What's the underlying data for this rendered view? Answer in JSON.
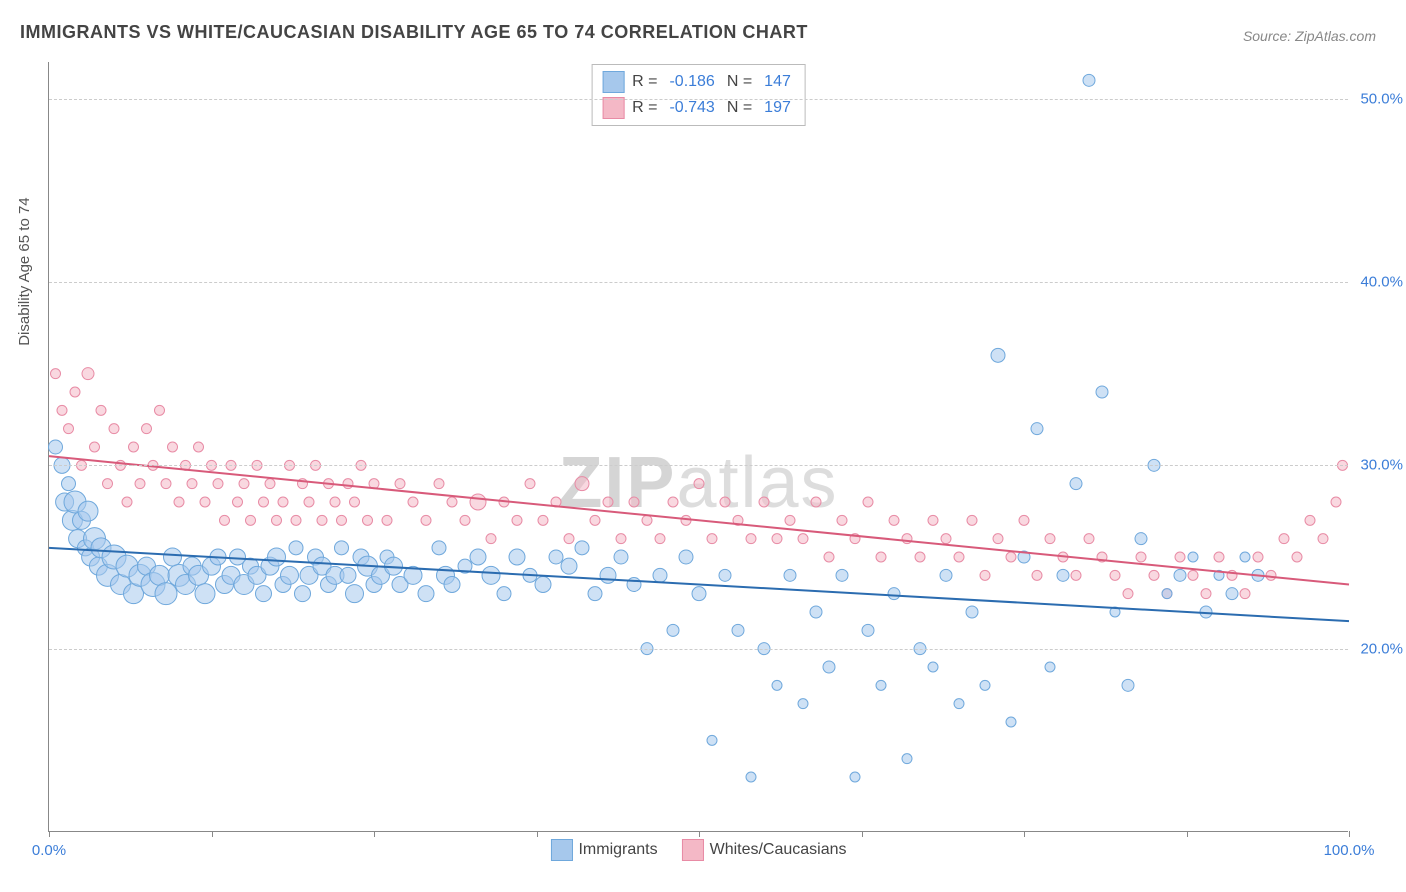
{
  "title": "IMMIGRANTS VS WHITE/CAUCASIAN DISABILITY AGE 65 TO 74 CORRELATION CHART",
  "source": "Source: ZipAtlas.com",
  "yaxis_title": "Disability Age 65 to 74",
  "watermark_bold": "ZIP",
  "watermark_rest": "atlas",
  "chart": {
    "type": "scatter",
    "xlim": [
      0,
      100
    ],
    "ylim": [
      10,
      52
    ],
    "yticks": [
      20,
      30,
      40,
      50
    ],
    "ytick_labels": [
      "20.0%",
      "30.0%",
      "40.0%",
      "50.0%"
    ],
    "xticks": [
      0,
      12.5,
      25,
      37.5,
      50,
      62.5,
      75,
      87.5,
      100
    ],
    "xtick_labels": {
      "0": "0.0%",
      "100": "100.0%"
    },
    "grid_color": "#cccccc",
    "background_color": "#ffffff",
    "series": [
      {
        "name": "Immigrants",
        "fill": "#a6c8ec",
        "stroke": "#6fa8dc",
        "fill_opacity": 0.55,
        "line_color": "#2b6cb0",
        "line_width": 2,
        "trend": {
          "x1": 0,
          "y1": 25.5,
          "x2": 100,
          "y2": 21.5
        },
        "R_label": "R =",
        "R": "-0.186",
        "N_label": "N =",
        "N": "147",
        "points": [
          [
            0.5,
            31,
            14
          ],
          [
            1,
            30,
            16
          ],
          [
            1.2,
            28,
            18
          ],
          [
            1.5,
            29,
            14
          ],
          [
            1.8,
            27,
            20
          ],
          [
            2,
            28,
            22
          ],
          [
            2.2,
            26,
            18
          ],
          [
            2.5,
            27,
            18
          ],
          [
            2.8,
            25.5,
            16
          ],
          [
            3,
            27.5,
            20
          ],
          [
            3.2,
            25,
            18
          ],
          [
            3.5,
            26,
            22
          ],
          [
            3.8,
            24.5,
            18
          ],
          [
            4,
            25.5,
            20
          ],
          [
            4.5,
            24,
            22
          ],
          [
            5,
            25,
            24
          ],
          [
            5.5,
            23.5,
            20
          ],
          [
            6,
            24.5,
            22
          ],
          [
            6.5,
            23,
            20
          ],
          [
            7,
            24,
            22
          ],
          [
            7.5,
            24.5,
            18
          ],
          [
            8,
            23.5,
            24
          ],
          [
            8.5,
            24,
            20
          ],
          [
            9,
            23,
            22
          ],
          [
            9.5,
            25,
            18
          ],
          [
            10,
            24,
            22
          ],
          [
            10.5,
            23.5,
            20
          ],
          [
            11,
            24.5,
            18
          ],
          [
            11.5,
            24,
            20
          ],
          [
            12,
            23,
            20
          ],
          [
            12.5,
            24.5,
            18
          ],
          [
            13,
            25,
            16
          ],
          [
            13.5,
            23.5,
            18
          ],
          [
            14,
            24,
            18
          ],
          [
            14.5,
            25,
            16
          ],
          [
            15,
            23.5,
            20
          ],
          [
            15.5,
            24.5,
            16
          ],
          [
            16,
            24,
            18
          ],
          [
            16.5,
            23,
            16
          ],
          [
            17,
            24.5,
            18
          ],
          [
            17.5,
            25,
            18
          ],
          [
            18,
            23.5,
            16
          ],
          [
            18.5,
            24,
            18
          ],
          [
            19,
            25.5,
            14
          ],
          [
            19.5,
            23,
            16
          ],
          [
            20,
            24,
            18
          ],
          [
            20.5,
            25,
            16
          ],
          [
            21,
            24.5,
            18
          ],
          [
            21.5,
            23.5,
            16
          ],
          [
            22,
            24,
            18
          ],
          [
            22.5,
            25.5,
            14
          ],
          [
            23,
            24,
            16
          ],
          [
            23.5,
            23,
            18
          ],
          [
            24,
            25,
            16
          ],
          [
            24.5,
            24.5,
            20
          ],
          [
            25,
            23.5,
            16
          ],
          [
            25.5,
            24,
            18
          ],
          [
            26,
            25,
            14
          ],
          [
            26.5,
            24.5,
            18
          ],
          [
            27,
            23.5,
            16
          ],
          [
            28,
            24,
            18
          ],
          [
            29,
            23,
            16
          ],
          [
            30,
            25.5,
            14
          ],
          [
            30.5,
            24,
            18
          ],
          [
            31,
            23.5,
            16
          ],
          [
            32,
            24.5,
            14
          ],
          [
            33,
            25,
            16
          ],
          [
            34,
            24,
            18
          ],
          [
            35,
            23,
            14
          ],
          [
            36,
            25,
            16
          ],
          [
            37,
            24,
            14
          ],
          [
            38,
            23.5,
            16
          ],
          [
            39,
            25,
            14
          ],
          [
            40,
            24.5,
            16
          ],
          [
            41,
            25.5,
            14
          ],
          [
            42,
            23,
            14
          ],
          [
            43,
            24,
            16
          ],
          [
            44,
            25,
            14
          ],
          [
            45,
            23.5,
            14
          ],
          [
            46,
            20,
            12
          ],
          [
            47,
            24,
            14
          ],
          [
            48,
            21,
            12
          ],
          [
            49,
            25,
            14
          ],
          [
            50,
            23,
            14
          ],
          [
            51,
            15,
            10
          ],
          [
            52,
            24,
            12
          ],
          [
            53,
            21,
            12
          ],
          [
            54,
            13,
            10
          ],
          [
            55,
            20,
            12
          ],
          [
            56,
            18,
            10
          ],
          [
            57,
            24,
            12
          ],
          [
            58,
            17,
            10
          ],
          [
            59,
            22,
            12
          ],
          [
            60,
            19,
            12
          ],
          [
            61,
            24,
            12
          ],
          [
            62,
            13,
            10
          ],
          [
            63,
            21,
            12
          ],
          [
            64,
            18,
            10
          ],
          [
            65,
            23,
            12
          ],
          [
            66,
            14,
            10
          ],
          [
            67,
            20,
            12
          ],
          [
            68,
            19,
            10
          ],
          [
            69,
            24,
            12
          ],
          [
            70,
            17,
            10
          ],
          [
            71,
            22,
            12
          ],
          [
            72,
            18,
            10
          ],
          [
            73,
            36,
            14
          ],
          [
            74,
            16,
            10
          ],
          [
            75,
            25,
            12
          ],
          [
            76,
            32,
            12
          ],
          [
            77,
            19,
            10
          ],
          [
            78,
            24,
            12
          ],
          [
            79,
            29,
            12
          ],
          [
            80,
            51,
            12
          ],
          [
            81,
            34,
            12
          ],
          [
            82,
            22,
            10
          ],
          [
            83,
            18,
            12
          ],
          [
            84,
            26,
            12
          ],
          [
            85,
            30,
            12
          ],
          [
            86,
            23,
            10
          ],
          [
            87,
            24,
            12
          ],
          [
            88,
            25,
            10
          ],
          [
            89,
            22,
            12
          ],
          [
            90,
            24,
            10
          ],
          [
            91,
            23,
            12
          ],
          [
            92,
            25,
            10
          ],
          [
            93,
            24,
            12
          ]
        ]
      },
      {
        "name": "Whites/Caucasians",
        "fill": "#f4b8c6",
        "stroke": "#e88ba5",
        "fill_opacity": 0.55,
        "line_color": "#d85a7a",
        "line_width": 2,
        "trend": {
          "x1": 0,
          "y1": 30.5,
          "x2": 100,
          "y2": 23.5
        },
        "R_label": "R =",
        "R": "-0.743",
        "N_label": "N =",
        "N": "197",
        "points": [
          [
            0.5,
            35,
            10
          ],
          [
            1,
            33,
            10
          ],
          [
            1.5,
            32,
            10
          ],
          [
            2,
            34,
            10
          ],
          [
            2.5,
            30,
            10
          ],
          [
            3,
            35,
            12
          ],
          [
            3.5,
            31,
            10
          ],
          [
            4,
            33,
            10
          ],
          [
            4.5,
            29,
            10
          ],
          [
            5,
            32,
            10
          ],
          [
            5.5,
            30,
            10
          ],
          [
            6,
            28,
            10
          ],
          [
            6.5,
            31,
            10
          ],
          [
            7,
            29,
            10
          ],
          [
            7.5,
            32,
            10
          ],
          [
            8,
            30,
            10
          ],
          [
            8.5,
            33,
            10
          ],
          [
            9,
            29,
            10
          ],
          [
            9.5,
            31,
            10
          ],
          [
            10,
            28,
            10
          ],
          [
            10.5,
            30,
            10
          ],
          [
            11,
            29,
            10
          ],
          [
            11.5,
            31,
            10
          ],
          [
            12,
            28,
            10
          ],
          [
            12.5,
            30,
            10
          ],
          [
            13,
            29,
            10
          ],
          [
            13.5,
            27,
            10
          ],
          [
            14,
            30,
            10
          ],
          [
            14.5,
            28,
            10
          ],
          [
            15,
            29,
            10
          ],
          [
            15.5,
            27,
            10
          ],
          [
            16,
            30,
            10
          ],
          [
            16.5,
            28,
            10
          ],
          [
            17,
            29,
            10
          ],
          [
            17.5,
            27,
            10
          ],
          [
            18,
            28,
            10
          ],
          [
            18.5,
            30,
            10
          ],
          [
            19,
            27,
            10
          ],
          [
            19.5,
            29,
            10
          ],
          [
            20,
            28,
            10
          ],
          [
            20.5,
            30,
            10
          ],
          [
            21,
            27,
            10
          ],
          [
            21.5,
            29,
            10
          ],
          [
            22,
            28,
            10
          ],
          [
            22.5,
            27,
            10
          ],
          [
            23,
            29,
            10
          ],
          [
            23.5,
            28,
            10
          ],
          [
            24,
            30,
            10
          ],
          [
            24.5,
            27,
            10
          ],
          [
            25,
            29,
            10
          ],
          [
            26,
            27,
            10
          ],
          [
            27,
            29,
            10
          ],
          [
            28,
            28,
            10
          ],
          [
            29,
            27,
            10
          ],
          [
            30,
            29,
            10
          ],
          [
            31,
            28,
            10
          ],
          [
            32,
            27,
            10
          ],
          [
            33,
            28,
            16
          ],
          [
            34,
            26,
            10
          ],
          [
            35,
            28,
            10
          ],
          [
            36,
            27,
            10
          ],
          [
            37,
            29,
            10
          ],
          [
            38,
            27,
            10
          ],
          [
            39,
            28,
            10
          ],
          [
            40,
            26,
            10
          ],
          [
            41,
            29,
            14
          ],
          [
            42,
            27,
            10
          ],
          [
            43,
            28,
            10
          ],
          [
            44,
            26,
            10
          ],
          [
            45,
            28,
            10
          ],
          [
            46,
            27,
            10
          ],
          [
            47,
            26,
            10
          ],
          [
            48,
            28,
            10
          ],
          [
            49,
            27,
            10
          ],
          [
            50,
            29,
            10
          ],
          [
            51,
            26,
            10
          ],
          [
            52,
            28,
            10
          ],
          [
            53,
            27,
            10
          ],
          [
            54,
            26,
            10
          ],
          [
            55,
            28,
            10
          ],
          [
            56,
            26,
            10
          ],
          [
            57,
            27,
            10
          ],
          [
            58,
            26,
            10
          ],
          [
            59,
            28,
            10
          ],
          [
            60,
            25,
            10
          ],
          [
            61,
            27,
            10
          ],
          [
            62,
            26,
            10
          ],
          [
            63,
            28,
            10
          ],
          [
            64,
            25,
            10
          ],
          [
            65,
            27,
            10
          ],
          [
            66,
            26,
            10
          ],
          [
            67,
            25,
            10
          ],
          [
            68,
            27,
            10
          ],
          [
            69,
            26,
            10
          ],
          [
            70,
            25,
            10
          ],
          [
            71,
            27,
            10
          ],
          [
            72,
            24,
            10
          ],
          [
            73,
            26,
            10
          ],
          [
            74,
            25,
            10
          ],
          [
            75,
            27,
            10
          ],
          [
            76,
            24,
            10
          ],
          [
            77,
            26,
            10
          ],
          [
            78,
            25,
            10
          ],
          [
            79,
            24,
            10
          ],
          [
            80,
            26,
            10
          ],
          [
            81,
            25,
            10
          ],
          [
            82,
            24,
            10
          ],
          [
            83,
            23,
            10
          ],
          [
            84,
            25,
            10
          ],
          [
            85,
            24,
            10
          ],
          [
            86,
            23,
            10
          ],
          [
            87,
            25,
            10
          ],
          [
            88,
            24,
            10
          ],
          [
            89,
            23,
            10
          ],
          [
            90,
            25,
            10
          ],
          [
            91,
            24,
            10
          ],
          [
            92,
            23,
            10
          ],
          [
            93,
            25,
            10
          ],
          [
            94,
            24,
            10
          ],
          [
            95,
            26,
            10
          ],
          [
            96,
            25,
            10
          ],
          [
            97,
            27,
            10
          ],
          [
            98,
            26,
            10
          ],
          [
            99,
            28,
            10
          ],
          [
            99.5,
            30,
            10
          ]
        ]
      }
    ]
  }
}
